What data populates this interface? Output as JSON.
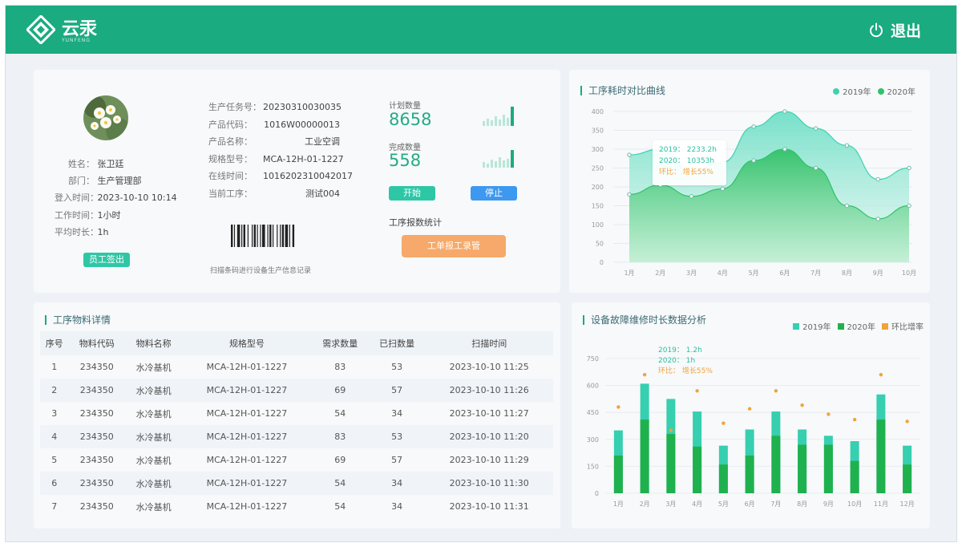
{
  "header": {
    "logo_text": "云汞",
    "logo_sub": "YUNFENG",
    "logout_label": "退出"
  },
  "info": {
    "labels": {
      "name": "姓名：",
      "dept": "部门：",
      "login_time": "登入时间：",
      "work_time": "工作时间：",
      "avg_time": "平均时长："
    },
    "values": {
      "name": "张卫廷",
      "dept": "生产管理部",
      "login_time": "2023-10-10 10:14",
      "work_time": "1小时",
      "avg_time": "1h"
    },
    "clock_out_label": "员工签出",
    "order": {
      "rows": [
        {
          "k": "生产任务号：",
          "v": "20230310030035"
        },
        {
          "k": "产品代码：",
          "v": "1016W00000013"
        },
        {
          "k": "产品名称：",
          "v": "工业空调"
        },
        {
          "k": "规格型号：",
          "v": "MCA-12H-01-1227"
        },
        {
          "k": "在线时间：",
          "v": "1016202310042017"
        },
        {
          "k": "当前工序：",
          "v": "测试004"
        }
      ],
      "barcode_caption": "扫描条码进行设备生产信息记录"
    },
    "stats": {
      "plan_label": "计划数量",
      "plan_value": "8658",
      "done_label": "完成数量",
      "done_value": "558",
      "start_label": "开始",
      "stop_label": "停止",
      "report_title": "工序报数统计",
      "report_button": "工单报工录管"
    }
  },
  "line_chart": {
    "title": "工序耗时对比曲线",
    "legend": [
      "2019年",
      "2020年"
    ],
    "tooltip": {
      "line1": "2019：   2233.2h",
      "line2": "2020：   10353h",
      "line3": "环比：  增长55%"
    },
    "chart_data": {
      "type": "area",
      "categories": [
        "1月",
        "2月",
        "3月",
        "4月",
        "5月",
        "6月",
        "7月",
        "8月",
        "9月",
        "10月"
      ],
      "y_ticks": [
        "400",
        "350",
        "300",
        "250",
        "200",
        "150",
        "100",
        "50",
        "0"
      ],
      "ylim": [
        0,
        400
      ],
      "series": [
        {
          "name": "2019年",
          "values": [
            285,
            300,
            240,
            265,
            360,
            400,
            355,
            310,
            220,
            250
          ],
          "color": "#3fd1b2"
        },
        {
          "name": "2020年",
          "values": [
            180,
            205,
            175,
            195,
            270,
            300,
            250,
            150,
            115,
            150
          ],
          "color": "#2fc26b"
        }
      ]
    }
  },
  "bar_chart": {
    "title": "设备故障维修时长数据分析",
    "legend": [
      "2019年",
      "2020年",
      "环比增率"
    ],
    "tooltip": {
      "line1": "2019：   1.2h",
      "line2": "2020：   1h",
      "line3": "环比：  增长55%"
    },
    "chart_data": {
      "type": "bar",
      "categories": [
        "1月",
        "2月",
        "3月",
        "4月",
        "5月",
        "6月",
        "7月",
        "8月",
        "9月",
        "10月",
        "11月",
        "12月"
      ],
      "y_ticks": [
        "750",
        "600",
        "450",
        "300",
        "150",
        "0"
      ],
      "ylim": [
        0,
        750
      ],
      "series": [
        {
          "name": "2019年",
          "values": [
            350,
            610,
            525,
            455,
            265,
            355,
            455,
            355,
            320,
            290,
            550,
            265
          ],
          "color": "#36cfb0"
        },
        {
          "name": "2020年",
          "values": [
            210,
            410,
            330,
            260,
            160,
            210,
            320,
            270,
            270,
            180,
            410,
            160
          ],
          "color": "#1fb14e"
        },
        {
          "name": "环比增率",
          "values": [
            480,
            660,
            350,
            570,
            390,
            470,
            570,
            490,
            440,
            410,
            660,
            400
          ],
          "color": "#f2a33a"
        }
      ]
    }
  },
  "table": {
    "title": "工序物料详情",
    "columns": [
      "序号",
      "物料代码",
      "物料名称",
      "规格型号",
      "需求数量",
      "已扫数量",
      "扫描时间"
    ],
    "rows": [
      [
        "1",
        "234350",
        "水冷基机",
        "MCA-12H-01-1227",
        "83",
        "53",
        "2023-10-10 11:25"
      ],
      [
        "2",
        "234350",
        "水冷基机",
        "MCA-12H-01-1227",
        "69",
        "57",
        "2023-10-10 11:26"
      ],
      [
        "3",
        "234350",
        "水冷基机",
        "MCA-12H-01-1227",
        "54",
        "34",
        "2023-10-10 11:27"
      ],
      [
        "4",
        "234350",
        "水冷基机",
        "MCA-12H-01-1227",
        "83",
        "53",
        "2023-10-10 11:20"
      ],
      [
        "5",
        "234350",
        "水冷基机",
        "MCA-12H-01-1227",
        "69",
        "57",
        "2023-10-10 11:29"
      ],
      [
        "6",
        "234350",
        "水冷基机",
        "MCA-12H-01-1227",
        "54",
        "34",
        "2023-10-10 11:30"
      ],
      [
        "7",
        "234350",
        "水冷基机",
        "MCA-12H-01-1227",
        "54",
        "34",
        "2023-10-10 11:31"
      ]
    ]
  }
}
